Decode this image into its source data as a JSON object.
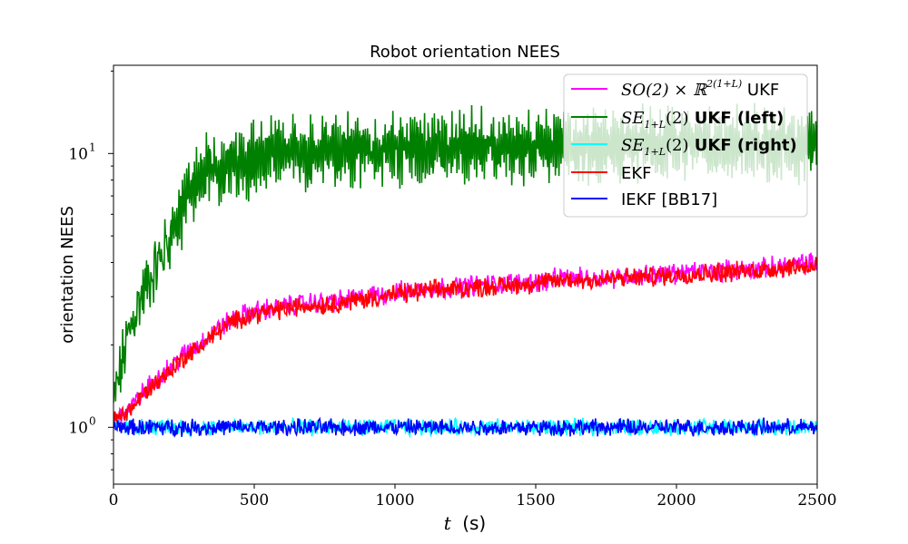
{
  "chart_data": {
    "type": "line",
    "title": "Robot orientation NEES",
    "xlabel_var": "t",
    "xlabel_unit": "(s)",
    "ylabel": "orientation NEES",
    "xlim": [
      0,
      2500
    ],
    "ylim": [
      0.62,
      21
    ],
    "yscale": "log",
    "x_ticks": [
      0,
      500,
      1000,
      1500,
      2000,
      2500
    ],
    "x_tick_labels": [
      "0",
      "500",
      "1000",
      "1500",
      "2000",
      "2500"
    ],
    "y_major_ticks": [
      1,
      10
    ],
    "y_major_labels": [
      "10",
      "10"
    ],
    "y_major_exponents": [
      "0",
      "1"
    ],
    "y_minor_ticks": [
      0.7,
      0.8,
      0.9,
      2,
      3,
      4,
      5,
      6,
      7,
      8,
      9,
      20
    ],
    "grid": false,
    "legend_position": "top-right",
    "series": [
      {
        "key": "so2_ukf",
        "name_math": "SO(2) × ℝ",
        "name_sup": "2(1+L)",
        "name_text": " UKF",
        "color": "#ff00ff",
        "x": [
          0,
          25,
          50,
          75,
          100,
          150,
          200,
          250,
          300,
          350,
          400,
          450,
          500,
          550,
          600,
          650,
          700,
          750,
          800,
          900,
          1000,
          1100,
          1200,
          1300,
          1400,
          1500,
          1600,
          1700,
          1800,
          1900,
          2000,
          2100,
          2200,
          2300,
          2400,
          2500
        ],
        "y": [
          1.05,
          1.1,
          1.15,
          1.22,
          1.32,
          1.5,
          1.65,
          1.85,
          2.0,
          2.2,
          2.4,
          2.55,
          2.65,
          2.7,
          2.75,
          2.8,
          2.85,
          2.85,
          2.9,
          3.0,
          3.1,
          3.2,
          3.25,
          3.3,
          3.35,
          3.4,
          3.5,
          3.5,
          3.55,
          3.6,
          3.65,
          3.7,
          3.75,
          3.8,
          3.9,
          4.0
        ]
      },
      {
        "key": "se_ukf_left",
        "name_math": "SE",
        "name_sub": "1+L",
        "name_math2": "(2)",
        "name_text": " UKF (left)",
        "color": "#008000",
        "x": [
          0,
          25,
          50,
          75,
          100,
          125,
          150,
          175,
          200,
          225,
          250,
          275,
          300,
          325,
          350,
          400,
          450,
          500,
          550,
          600,
          700,
          800,
          900,
          1000,
          1100,
          1200,
          1300,
          1400,
          1500,
          1600,
          1700,
          1800,
          1900,
          2000,
          2100,
          2200,
          2300,
          2400,
          2500
        ],
        "y": [
          1.2,
          1.6,
          2.1,
          2.6,
          3.0,
          3.4,
          3.8,
          4.3,
          4.9,
          5.6,
          6.5,
          7.4,
          8.0,
          8.4,
          8.7,
          9.0,
          9.3,
          9.6,
          9.8,
          10.0,
          10.2,
          10.3,
          10.4,
          10.5,
          10.5,
          10.6,
          10.6,
          10.6,
          10.7,
          10.7,
          10.7,
          10.7,
          10.8,
          10.8,
          10.8,
          10.8,
          10.8,
          10.8,
          10.8
        ]
      },
      {
        "key": "se_ukf_right",
        "name_math": "SE",
        "name_sub": "1+L",
        "name_math2": "(2)",
        "name_text": " UKF (right)",
        "color": "#00ffff",
        "x": [
          0,
          250,
          500,
          750,
          1000,
          1250,
          1500,
          1750,
          2000,
          2250,
          2500
        ],
        "y": [
          1.0,
          1.0,
          1.0,
          1.0,
          1.0,
          1.0,
          1.0,
          1.0,
          1.0,
          1.0,
          1.0
        ]
      },
      {
        "key": "ekf",
        "name_text": "EKF",
        "color": "#ff0000",
        "x": [
          0,
          25,
          50,
          75,
          100,
          150,
          200,
          250,
          300,
          350,
          400,
          450,
          500,
          550,
          600,
          650,
          700,
          750,
          800,
          900,
          1000,
          1100,
          1200,
          1300,
          1400,
          1500,
          1600,
          1700,
          1800,
          1900,
          2000,
          2100,
          2200,
          2300,
          2400,
          2500
        ],
        "y": [
          1.05,
          1.1,
          1.15,
          1.2,
          1.3,
          1.45,
          1.6,
          1.8,
          1.95,
          2.15,
          2.35,
          2.5,
          2.6,
          2.65,
          2.7,
          2.75,
          2.8,
          2.8,
          2.85,
          2.95,
          3.05,
          3.15,
          3.2,
          3.25,
          3.3,
          3.35,
          3.45,
          3.45,
          3.5,
          3.55,
          3.6,
          3.65,
          3.7,
          3.75,
          3.85,
          3.9
        ]
      },
      {
        "key": "iekf",
        "name_text": "IEKF [BB17]",
        "color": "#0000ff",
        "x": [
          0,
          250,
          500,
          750,
          1000,
          1250,
          1500,
          1750,
          2000,
          2250,
          2500
        ],
        "y": [
          1.0,
          1.0,
          1.0,
          1.0,
          1.0,
          1.0,
          1.0,
          1.0,
          1.0,
          1.0,
          1.0
        ]
      }
    ]
  }
}
